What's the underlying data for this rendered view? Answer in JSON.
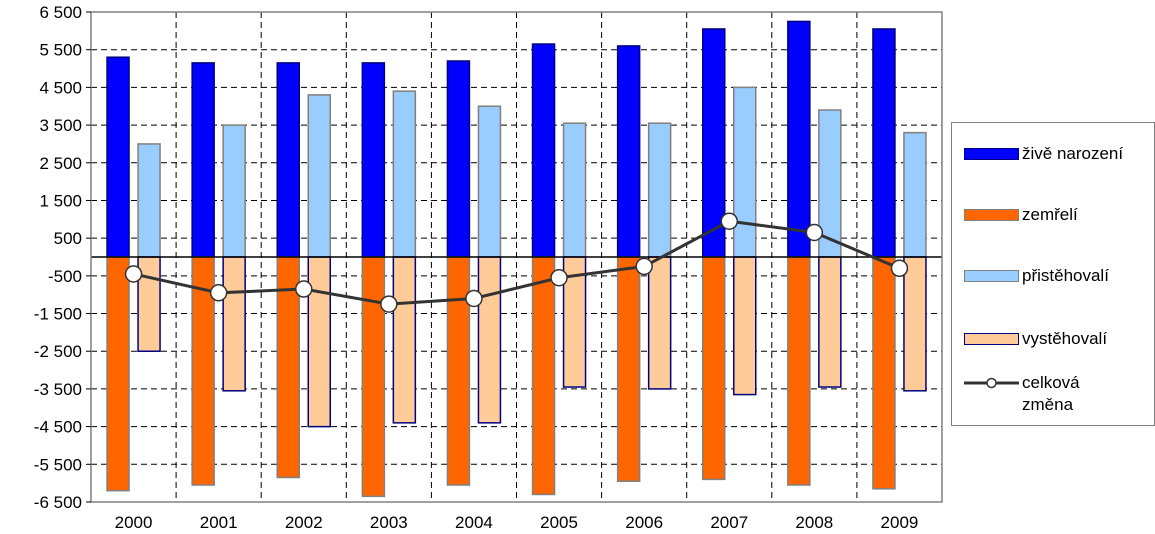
{
  "chart_data": {
    "type": "bar",
    "categories": [
      "2000",
      "2001",
      "2002",
      "2003",
      "2004",
      "2005",
      "2006",
      "2007",
      "2008",
      "2009"
    ],
    "series": [
      {
        "name": "živě narození",
        "type": "bar",
        "color": "#0000ff",
        "stroke": "#000080",
        "values": [
          5300,
          5150,
          5150,
          5150,
          5200,
          5650,
          5600,
          6050,
          6250,
          6050
        ]
      },
      {
        "name": "zemřelí",
        "type": "bar",
        "color": "#ff6600",
        "stroke": "#808080",
        "values": [
          -6200,
          -6050,
          -5850,
          -6350,
          -6050,
          -6300,
          -5950,
          -5900,
          -6050,
          -6150
        ]
      },
      {
        "name": "přistěhovalí",
        "type": "bar",
        "color": "#99ccff",
        "stroke": "#808080",
        "values": [
          3000,
          3500,
          4300,
          4400,
          4000,
          3550,
          3550,
          4500,
          3900,
          3300
        ]
      },
      {
        "name": "vystěhovalí",
        "type": "bar",
        "color": "#ffcc99",
        "stroke": "#000080",
        "values": [
          -2500,
          -3550,
          -4500,
          -4400,
          -4400,
          -3450,
          -3500,
          -3650,
          -3450,
          -3550
        ]
      },
      {
        "name": "celková změna",
        "type": "line",
        "color": "#333333",
        "values": [
          -450,
          -950,
          -850,
          -1250,
          -1100,
          -550,
          -250,
          950,
          650,
          -300
        ]
      }
    ],
    "ylim": [
      -6500,
      6500
    ],
    "yticks": [
      "6 500",
      "5 500",
      "4 500",
      "3 500",
      "2 500",
      "1 500",
      "500",
      "-500",
      "-1 500",
      "-2 500",
      "-3 500",
      "-4 500",
      "-5 500",
      "-6 500"
    ],
    "ytick_values": [
      6500,
      5500,
      4500,
      3500,
      2500,
      1500,
      500,
      -500,
      -1500,
      -2500,
      -3500,
      -4500,
      -5500,
      -6500
    ],
    "grid": true,
    "legend_placement": "right",
    "title": "",
    "xlabel": "",
    "ylabel": ""
  }
}
